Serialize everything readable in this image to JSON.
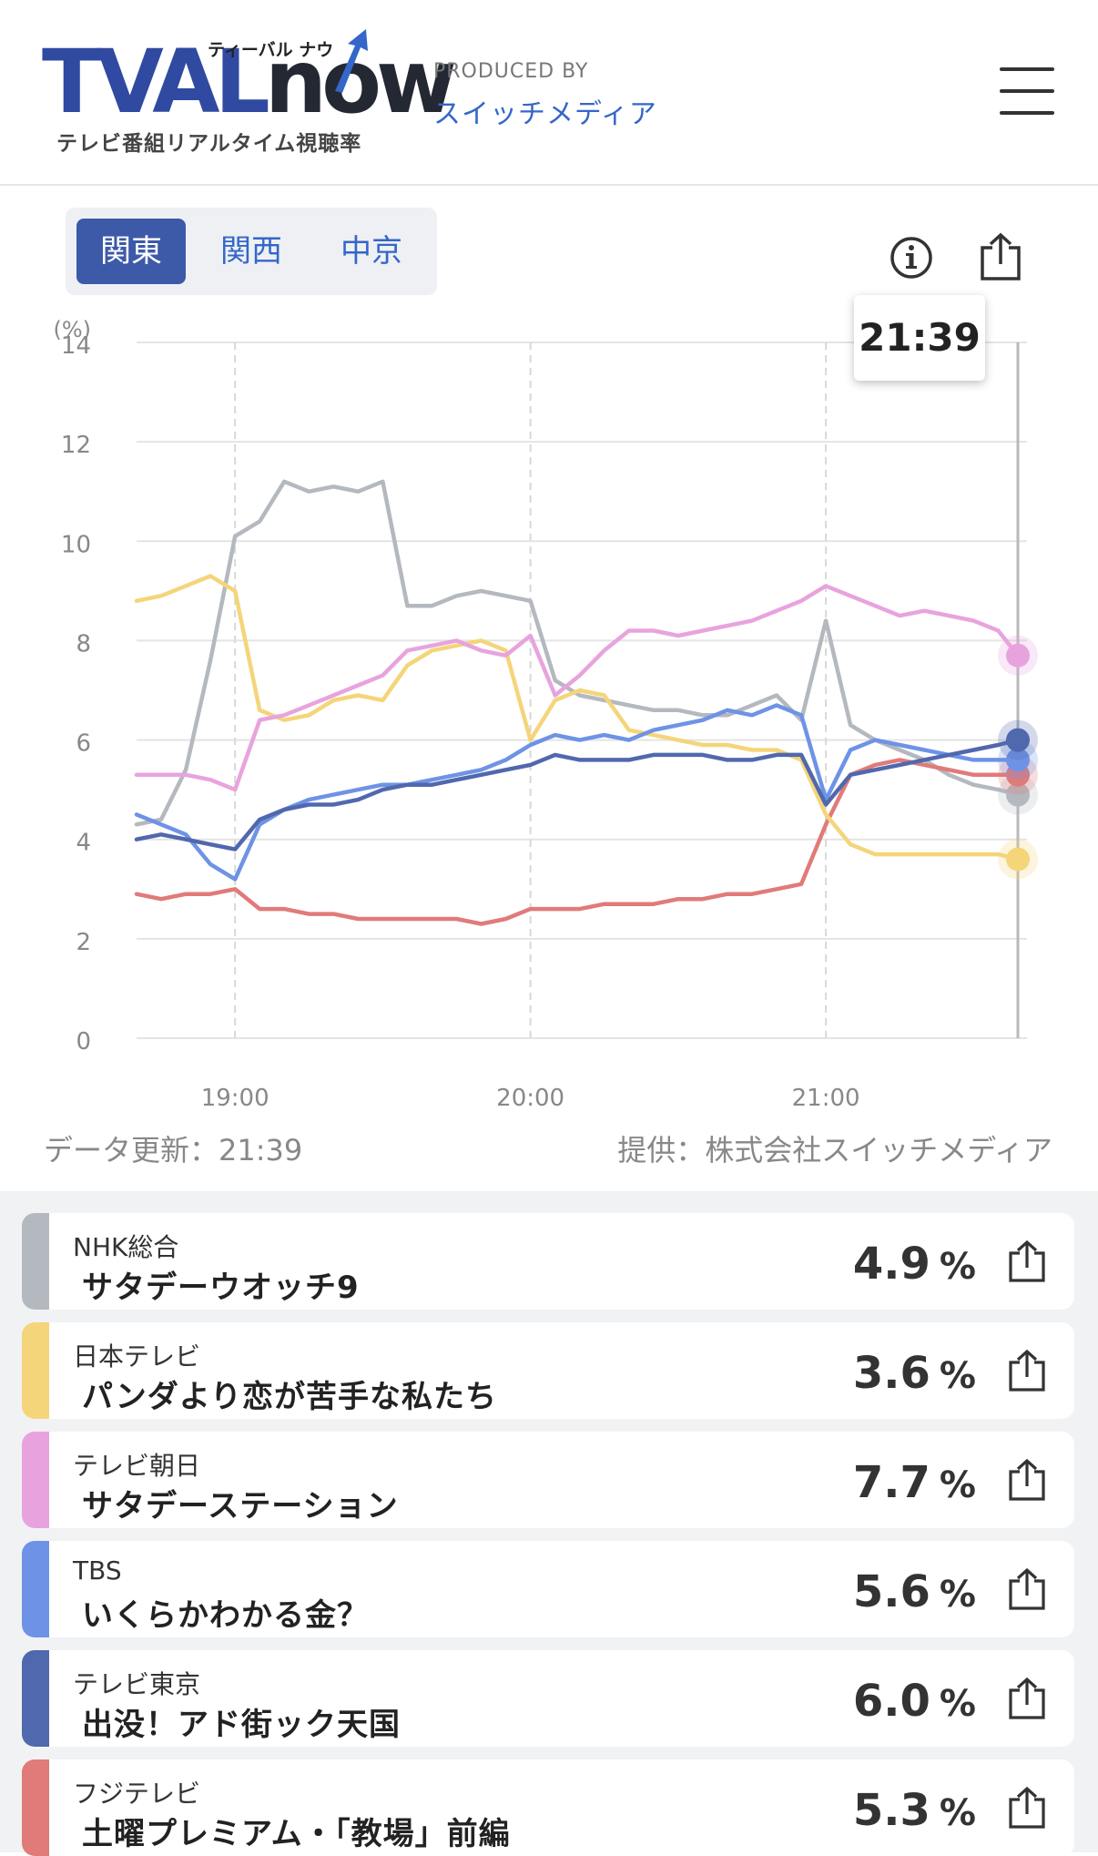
{
  "header": {
    "logo_main": "TVAL",
    "logo_now": "now",
    "logo_kana": "ティーバル ナウ",
    "logo_sub": "テレビ番組リアルタイム視聴率",
    "produced_label": "PRODUCED BY",
    "produced_name": "スイッチメディア"
  },
  "regions": [
    "関東",
    "関西",
    "中京"
  ],
  "active_region": "関東",
  "current_time": "21:39",
  "footer": {
    "update": "データ更新：21:39",
    "provider": "提供：株式会社スイッチメディア"
  },
  "chart_data": {
    "type": "line",
    "ylabel": "(%)",
    "ylim": [
      0,
      14
    ],
    "yticks": [
      0,
      2,
      4,
      6,
      8,
      10,
      12,
      14
    ],
    "xlim": [
      "18:40",
      "21:39"
    ],
    "xticks": [
      "19:00",
      "20:00",
      "21:00"
    ],
    "grid": true,
    "x": [
      "18:40",
      "18:45",
      "18:50",
      "18:55",
      "19:00",
      "19:05",
      "19:10",
      "19:15",
      "19:20",
      "19:25",
      "19:30",
      "19:35",
      "19:40",
      "19:45",
      "19:50",
      "19:55",
      "20:00",
      "20:05",
      "20:10",
      "20:15",
      "20:20",
      "20:25",
      "20:30",
      "20:35",
      "20:40",
      "20:45",
      "20:50",
      "20:55",
      "21:00",
      "21:05",
      "21:10",
      "21:15",
      "21:20",
      "21:25",
      "21:30",
      "21:35",
      "21:39"
    ],
    "series": [
      {
        "name": "NHK総合",
        "color": "#b4b8bf",
        "values": [
          4.3,
          4.4,
          5.4,
          7.6,
          10.1,
          10.4,
          11.2,
          11.0,
          11.1,
          11.0,
          11.2,
          8.7,
          8.7,
          8.9,
          9.0,
          8.9,
          8.8,
          7.2,
          6.9,
          6.8,
          6.7,
          6.6,
          6.6,
          6.5,
          6.5,
          6.7,
          6.9,
          6.4,
          8.4,
          6.3,
          6.0,
          5.8,
          5.6,
          5.3,
          5.1,
          5.0,
          4.9
        ]
      },
      {
        "name": "日本テレビ",
        "color": "#f5d57a",
        "values": [
          8.8,
          8.9,
          9.1,
          9.3,
          9.0,
          6.6,
          6.4,
          6.5,
          6.8,
          6.9,
          6.8,
          7.5,
          7.8,
          7.9,
          8.0,
          7.8,
          6.0,
          6.8,
          7.0,
          6.9,
          6.2,
          6.1,
          6.0,
          5.9,
          5.9,
          5.8,
          5.8,
          5.6,
          4.5,
          3.9,
          3.7,
          3.7,
          3.7,
          3.7,
          3.7,
          3.7,
          3.6
        ]
      },
      {
        "name": "テレビ朝日",
        "color": "#e8a3de",
        "values": [
          5.3,
          5.3,
          5.3,
          5.2,
          5.0,
          6.4,
          6.5,
          6.7,
          6.9,
          7.1,
          7.3,
          7.8,
          7.9,
          8.0,
          7.8,
          7.7,
          8.1,
          6.9,
          7.3,
          7.8,
          8.2,
          8.2,
          8.1,
          8.2,
          8.3,
          8.4,
          8.6,
          8.8,
          9.1,
          8.9,
          8.7,
          8.5,
          8.6,
          8.5,
          8.4,
          8.2,
          7.7
        ]
      },
      {
        "name": "TBS",
        "color": "#6e93e6",
        "values": [
          4.5,
          4.3,
          4.1,
          3.5,
          3.2,
          4.3,
          4.6,
          4.8,
          4.9,
          5.0,
          5.1,
          5.1,
          5.2,
          5.3,
          5.4,
          5.6,
          5.9,
          6.1,
          6.0,
          6.1,
          6.0,
          6.2,
          6.3,
          6.4,
          6.6,
          6.5,
          6.7,
          6.5,
          4.8,
          5.8,
          6.0,
          5.9,
          5.8,
          5.7,
          5.6,
          5.6,
          5.6
        ]
      },
      {
        "name": "テレビ東京",
        "color": "#5068ad",
        "values": [
          4.0,
          4.1,
          4.0,
          3.9,
          3.8,
          4.4,
          4.6,
          4.7,
          4.7,
          4.8,
          5.0,
          5.1,
          5.1,
          5.2,
          5.3,
          5.4,
          5.5,
          5.7,
          5.6,
          5.6,
          5.6,
          5.7,
          5.7,
          5.7,
          5.6,
          5.6,
          5.7,
          5.7,
          4.7,
          5.3,
          5.4,
          5.5,
          5.6,
          5.7,
          5.8,
          5.9,
          6.0
        ]
      },
      {
        "name": "フジテレビ",
        "color": "#e07b79",
        "values": [
          2.9,
          2.8,
          2.9,
          2.9,
          3.0,
          2.6,
          2.6,
          2.5,
          2.5,
          2.4,
          2.4,
          2.4,
          2.4,
          2.4,
          2.3,
          2.4,
          2.6,
          2.6,
          2.6,
          2.7,
          2.7,
          2.7,
          2.8,
          2.8,
          2.9,
          2.9,
          3.0,
          3.1,
          4.3,
          5.3,
          5.5,
          5.6,
          5.5,
          5.4,
          5.3,
          5.3,
          5.3
        ]
      }
    ]
  },
  "channels": [
    {
      "channel": "NHK総合",
      "program": "サタデーウオッチ9",
      "rating": "4.9",
      "unit": "%",
      "color": "#b4b8bf"
    },
    {
      "channel": "日本テレビ",
      "program": "パンダより恋が苦手な私たち",
      "rating": "3.6",
      "unit": "%",
      "color": "#f5d57a"
    },
    {
      "channel": "テレビ朝日",
      "program": "サタデーステーション",
      "rating": "7.7",
      "unit": "%",
      "color": "#e8a3de"
    },
    {
      "channel": "TBS",
      "program": "いくらかわかる金？",
      "rating": "5.6",
      "unit": "%",
      "color": "#6e93e6"
    },
    {
      "channel": "テレビ東京",
      "program": "出没！アド街ック天国",
      "rating": "6.0",
      "unit": "%",
      "color": "#5068ad"
    },
    {
      "channel": "フジテレビ",
      "program": "土曜プレミアム・「教場」前編",
      "rating": "5.3",
      "unit": "%",
      "color": "#e07b79"
    }
  ]
}
